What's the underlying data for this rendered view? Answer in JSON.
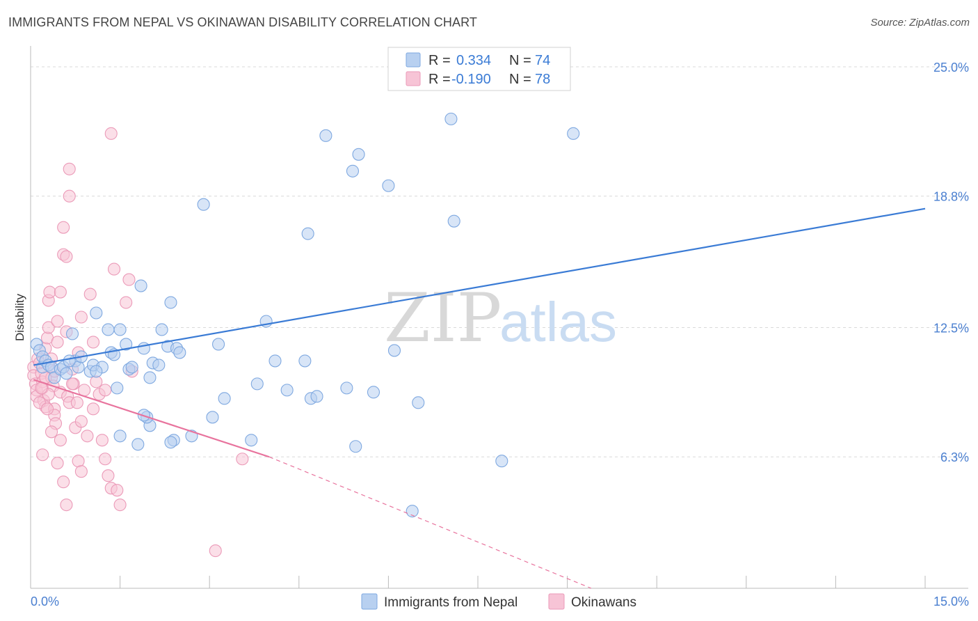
{
  "title": "IMMIGRANTS FROM NEPAL VS OKINAWAN DISABILITY CORRELATION CHART",
  "source": "Source: ZipAtlas.com",
  "watermark": {
    "zip": "ZIP",
    "atlas": "atlas"
  },
  "colors": {
    "blue": "#3a7bd5",
    "blue_fill": "#b8d0f0",
    "pink": "#e8739d",
    "pink_fill": "#f7c4d6",
    "tick_label": "#4a7fd0",
    "grid": "#d9d9d9"
  },
  "chart_data": {
    "type": "scatter",
    "xlabel": "",
    "ylabel": "Disability",
    "xlim": [
      0,
      15
    ],
    "ylim": [
      0,
      26
    ],
    "x_tick_labels": {
      "min": "0.0%",
      "max": "15.0%"
    },
    "y_ticks": [
      {
        "value": 25.0,
        "label": "25.0%"
      },
      {
        "value": 18.8,
        "label": "18.8%"
      },
      {
        "value": 12.5,
        "label": "12.5%"
      },
      {
        "value": 6.3,
        "label": "6.3%"
      }
    ],
    "legend": {
      "rows": [
        {
          "r_label": "R =",
          "r_value": "0.334",
          "n_label": "N =",
          "n_value": "74"
        },
        {
          "r_label": "R =",
          "r_value": "-0.190",
          "n_label": "N =",
          "n_value": "78"
        }
      ]
    },
    "series": [
      {
        "name": "Immigrants from Nepal",
        "color": "#3a7bd5",
        "trend": {
          "x0": 0.05,
          "y0": 10.7,
          "x1": 15.0,
          "y1": 18.2,
          "dashed_to": null
        },
        "points": [
          [
            0.1,
            11.7
          ],
          [
            0.15,
            11.4
          ],
          [
            0.2,
            11.1
          ],
          [
            0.2,
            10.6
          ],
          [
            0.25,
            10.9
          ],
          [
            0.3,
            10.7
          ],
          [
            0.35,
            10.6
          ],
          [
            0.4,
            10.1
          ],
          [
            0.5,
            10.5
          ],
          [
            0.55,
            10.6
          ],
          [
            0.6,
            10.3
          ],
          [
            0.7,
            12.2
          ],
          [
            0.75,
            10.9
          ],
          [
            0.8,
            10.6
          ],
          [
            0.85,
            11.1
          ],
          [
            1.0,
            10.4
          ],
          [
            1.05,
            10.7
          ],
          [
            1.1,
            13.2
          ],
          [
            1.2,
            10.6
          ],
          [
            1.3,
            12.4
          ],
          [
            1.35,
            11.3
          ],
          [
            1.4,
            11.2
          ],
          [
            1.45,
            9.6
          ],
          [
            1.5,
            12.4
          ],
          [
            1.6,
            11.7
          ],
          [
            1.65,
            10.5
          ],
          [
            1.7,
            10.6
          ],
          [
            1.85,
            14.5
          ],
          [
            1.9,
            11.5
          ],
          [
            2.0,
            10.1
          ],
          [
            2.05,
            10.8
          ],
          [
            2.15,
            10.7
          ],
          [
            2.2,
            12.4
          ],
          [
            2.3,
            11.6
          ],
          [
            2.35,
            13.7
          ],
          [
            2.45,
            11.5
          ],
          [
            2.5,
            11.3
          ],
          [
            2.9,
            18.4
          ],
          [
            3.15,
            11.7
          ],
          [
            3.25,
            9.1
          ],
          [
            3.8,
            9.8
          ],
          [
            3.95,
            12.8
          ],
          [
            4.1,
            10.9
          ],
          [
            4.3,
            9.5
          ],
          [
            4.6,
            10.9
          ],
          [
            4.65,
            17.0
          ],
          [
            4.7,
            9.1
          ],
          [
            4.8,
            9.2
          ],
          [
            4.95,
            21.7
          ],
          [
            5.4,
            20.0
          ],
          [
            5.5,
            20.8
          ],
          [
            5.3,
            9.6
          ],
          [
            5.75,
            9.4
          ],
          [
            6.0,
            19.3
          ],
          [
            6.1,
            11.4
          ],
          [
            6.4,
            3.7
          ],
          [
            6.5,
            8.9
          ],
          [
            7.05,
            22.5
          ],
          [
            7.1,
            17.6
          ],
          [
            7.9,
            6.1
          ],
          [
            9.1,
            21.8
          ],
          [
            3.7,
            7.1
          ],
          [
            3.05,
            8.2
          ],
          [
            2.7,
            7.3
          ],
          [
            2.4,
            7.1
          ],
          [
            2.35,
            7.0
          ],
          [
            2.0,
            7.8
          ],
          [
            1.95,
            8.2
          ],
          [
            1.9,
            8.3
          ],
          [
            1.5,
            7.3
          ],
          [
            1.8,
            6.9
          ],
          [
            5.45,
            6.8
          ],
          [
            1.1,
            10.4
          ],
          [
            0.65,
            10.9
          ]
        ]
      },
      {
        "name": "Okinawans",
        "color": "#e8739d",
        "trend": {
          "x0": 0.05,
          "y0": 10.0,
          "x1": 4.0,
          "y1": 6.3,
          "dashed_to": {
            "x": 9.4,
            "y": 0.0
          }
        },
        "points": [
          [
            0.05,
            10.6
          ],
          [
            0.05,
            10.2
          ],
          [
            0.08,
            9.8
          ],
          [
            0.1,
            9.5
          ],
          [
            0.1,
            9.2
          ],
          [
            0.12,
            11.0
          ],
          [
            0.15,
            10.8
          ],
          [
            0.18,
            10.3
          ],
          [
            0.2,
            9.9
          ],
          [
            0.2,
            9.6
          ],
          [
            0.22,
            9.0
          ],
          [
            0.25,
            8.7
          ],
          [
            0.25,
            11.5
          ],
          [
            0.28,
            12.0
          ],
          [
            0.3,
            12.5
          ],
          [
            0.3,
            13.8
          ],
          [
            0.32,
            14.2
          ],
          [
            0.35,
            10.1
          ],
          [
            0.38,
            9.7
          ],
          [
            0.4,
            8.6
          ],
          [
            0.4,
            8.3
          ],
          [
            0.42,
            7.9
          ],
          [
            0.45,
            12.8
          ],
          [
            0.45,
            11.8
          ],
          [
            0.5,
            9.4
          ],
          [
            0.5,
            14.2
          ],
          [
            0.55,
            16.0
          ],
          [
            0.55,
            17.3
          ],
          [
            0.6,
            15.9
          ],
          [
            0.6,
            12.3
          ],
          [
            0.62,
            9.2
          ],
          [
            0.65,
            8.9
          ],
          [
            0.7,
            10.5
          ],
          [
            0.72,
            9.8
          ],
          [
            0.75,
            7.7
          ],
          [
            0.78,
            8.9
          ],
          [
            0.8,
            11.3
          ],
          [
            0.85,
            13.0
          ],
          [
            0.85,
            8.0
          ],
          [
            0.9,
            9.5
          ],
          [
            0.95,
            7.3
          ],
          [
            1.0,
            14.1
          ],
          [
            1.05,
            11.8
          ],
          [
            1.1,
            9.9
          ],
          [
            1.15,
            9.3
          ],
          [
            1.2,
            7.1
          ],
          [
            1.25,
            6.2
          ],
          [
            1.3,
            5.4
          ],
          [
            1.35,
            4.8
          ],
          [
            1.4,
            15.3
          ],
          [
            0.65,
            18.8
          ],
          [
            0.65,
            20.1
          ],
          [
            1.35,
            21.8
          ],
          [
            1.45,
            4.7
          ],
          [
            1.5,
            4.0
          ],
          [
            1.6,
            13.7
          ],
          [
            1.65,
            14.8
          ],
          [
            1.7,
            10.4
          ],
          [
            0.55,
            5.1
          ],
          [
            0.45,
            6.0
          ],
          [
            0.6,
            4.0
          ],
          [
            0.2,
            6.4
          ],
          [
            0.8,
            6.1
          ],
          [
            0.85,
            5.6
          ],
          [
            1.05,
            8.6
          ],
          [
            1.25,
            9.5
          ],
          [
            3.55,
            6.2
          ],
          [
            3.1,
            1.8
          ],
          [
            0.15,
            8.9
          ],
          [
            0.3,
            9.3
          ],
          [
            0.35,
            11.0
          ],
          [
            0.4,
            10.4
          ],
          [
            0.18,
            9.6
          ],
          [
            0.25,
            10.1
          ],
          [
            0.28,
            8.6
          ],
          [
            0.5,
            7.1
          ],
          [
            0.35,
            7.5
          ],
          [
            0.7,
            9.8
          ]
        ]
      }
    ]
  }
}
